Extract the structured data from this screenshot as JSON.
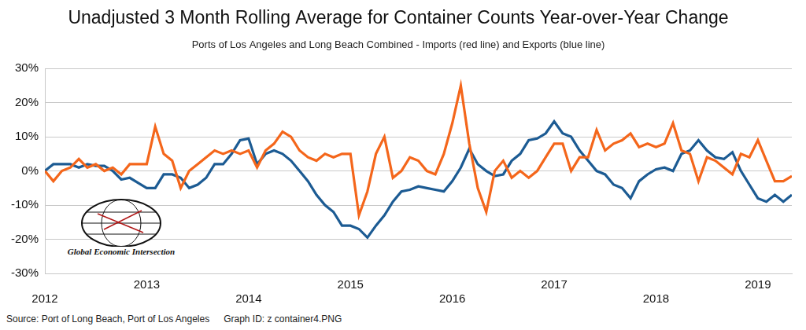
{
  "chart_data": {
    "type": "line",
    "title": "Unadjusted 3 Month Rolling Average for Container Counts Year-over-Year Change",
    "subtitle": "Ports of Los Angeles and Long Beach Combined - Imports (red line) and Exports (blue line)",
    "source": "Source: Port of Long Beach, Port of Los Angeles",
    "graph_id": "Graph ID: z container4.PNG",
    "logo_text": "Global Economic Intersection",
    "categories": [
      "2012",
      null,
      null,
      null,
      null,
      null,
      null,
      null,
      null,
      null,
      null,
      null,
      "2013",
      null,
      null,
      null,
      null,
      null,
      null,
      null,
      null,
      null,
      null,
      null,
      "2014",
      null,
      null,
      null,
      null,
      null,
      null,
      null,
      null,
      null,
      null,
      null,
      "2015",
      null,
      null,
      null,
      null,
      null,
      null,
      null,
      null,
      null,
      null,
      null,
      "2016",
      null,
      null,
      null,
      null,
      null,
      null,
      null,
      null,
      null,
      null,
      null,
      "2017",
      null,
      null,
      null,
      null,
      null,
      null,
      null,
      null,
      null,
      null,
      null,
      "2018",
      null,
      null,
      null,
      null,
      null,
      null,
      null,
      null,
      null,
      null,
      null,
      "2019",
      null,
      null,
      null,
      null
    ],
    "series": [
      {
        "name": "Imports",
        "color": "#f4661b",
        "values": [
          0,
          -3,
          0,
          1,
          3.5,
          1,
          2,
          0,
          1,
          -1,
          2,
          2,
          2,
          13,
          5,
          3,
          -5,
          0,
          2,
          4,
          6,
          5,
          6,
          5,
          6,
          1,
          6,
          8,
          11.5,
          10,
          6,
          4,
          3,
          5,
          4,
          5,
          5,
          -13,
          -6,
          5,
          10,
          -2,
          0,
          4,
          3,
          0,
          -1,
          5,
          14,
          25,
          8,
          -5,
          -12,
          0,
          3,
          -2,
          0,
          -2,
          0,
          4,
          8,
          8,
          0,
          4,
          4,
          12,
          6,
          8,
          9,
          11,
          7,
          8,
          7,
          8,
          14,
          6,
          5,
          -3,
          4,
          3,
          1,
          -1,
          5,
          4,
          9,
          3,
          -3,
          -3,
          -1.5
        ]
      },
      {
        "name": "Exports",
        "color": "#1c5b93",
        "values": [
          0,
          2,
          2,
          2,
          1,
          2,
          1.5,
          1.5,
          0,
          -2.5,
          -2,
          -3.5,
          -5,
          -5,
          -1,
          -1,
          -2,
          -5,
          -4,
          -2,
          2,
          2,
          5,
          9,
          9.5,
          2,
          5,
          6,
          5,
          3,
          0,
          -3,
          -7,
          -10,
          -12,
          -16,
          -16,
          -17,
          -19.5,
          -16,
          -13,
          -9,
          -6,
          -5.5,
          -4.5,
          -5,
          -5.5,
          -6,
          -3,
          1,
          6.5,
          2,
          0,
          -1.5,
          -1,
          3,
          5,
          9,
          9.5,
          11,
          14.5,
          11,
          10,
          6,
          3,
          0,
          -1,
          -4,
          -5,
          -8,
          -3,
          -1,
          0.5,
          1,
          0,
          5,
          6,
          9,
          6,
          4,
          3.5,
          5.5,
          0,
          -4,
          -8,
          -9,
          -7,
          -9,
          -7
        ]
      }
    ],
    "ylim": [
      -30,
      30
    ],
    "yticks": [
      {
        "value": -30,
        "label": "-30%"
      },
      {
        "value": -20,
        "label": "-20%"
      },
      {
        "value": -10,
        "label": "-10%"
      },
      {
        "value": 0,
        "label": "0%"
      },
      {
        "value": 10,
        "label": "10%"
      },
      {
        "value": 20,
        "label": "20%"
      },
      {
        "value": 30,
        "label": "30%"
      }
    ],
    "grid": "y"
  }
}
